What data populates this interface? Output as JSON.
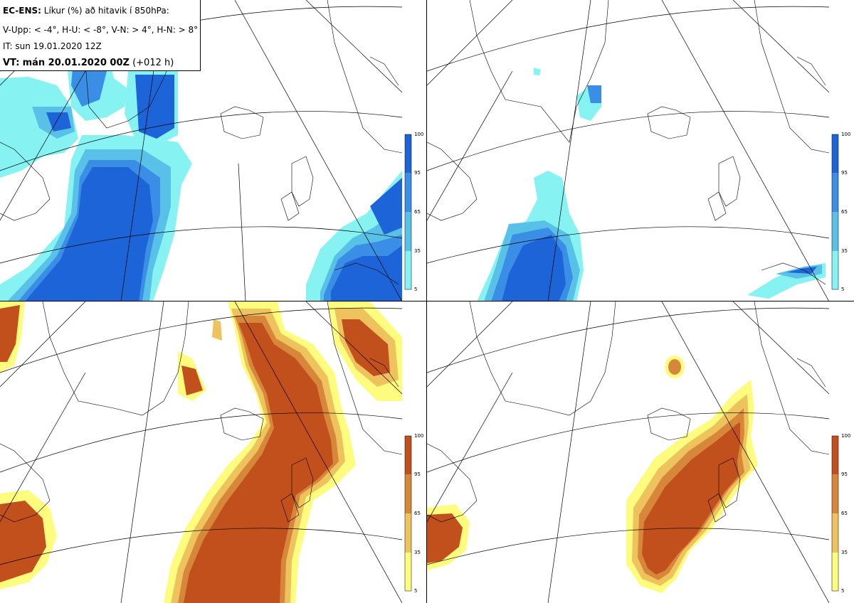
{
  "header": {
    "model_label": "EC-ENS:",
    "title_rest": "Líkur (%) að hitavik í 850hPa:",
    "categories_line": "V-Upp: < -4°, H-U: < -8°, V-N: > 4°, H-N: > 8°",
    "initial_time": "IT: sun 19.01.2020 12Z",
    "valid_label": "VT:",
    "valid_time": "mán 20.01.2020 00Z",
    "lead_time": "(+012 h)"
  },
  "panels": [
    {
      "id": "V-Upp",
      "threshold": "< -4°",
      "colorscale": "blue"
    },
    {
      "id": "H-U",
      "threshold": "< -8°",
      "colorscale": "blue"
    },
    {
      "id": "V-N",
      "threshold": "> 4°",
      "colorscale": "orange"
    },
    {
      "id": "H-N",
      "threshold": "> 8°",
      "colorscale": "orange"
    }
  ],
  "colorbar": {
    "ticks": [
      "100",
      "95",
      "65",
      "35",
      "5"
    ],
    "blue_colors": [
      "#1c64d8",
      "#3b8ee6",
      "#59c1e8",
      "#86f2f2"
    ],
    "orange_colors": [
      "#c1501c",
      "#d7873a",
      "#eec35d",
      "#fdfc7e"
    ]
  }
}
